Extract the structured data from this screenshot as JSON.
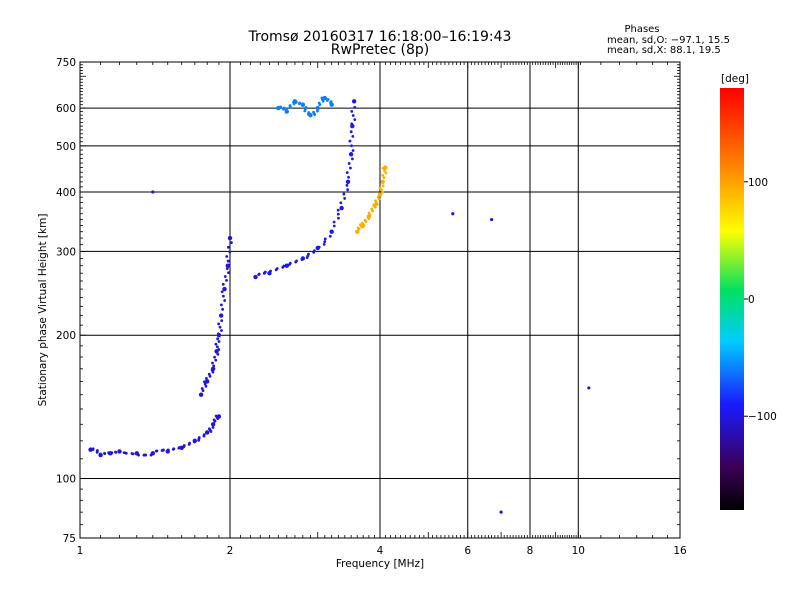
{
  "title_line1": "Tromsø 20160317 16:18:00–16:19:43",
  "title_line2": "RwPretec (8p)",
  "stats": {
    "heading": "Phases",
    "line_o": "mean, sd,O: −97.1, 15.5",
    "line_x": "mean, sd,X: 88.1, 19.5"
  },
  "colorbar": {
    "label": "[deg]",
    "range": [
      -180,
      180
    ],
    "tick_labels": [
      "100",
      "0",
      "−100"
    ],
    "tick_values": [
      100,
      0,
      -100
    ]
  },
  "chart_data": {
    "type": "scatter",
    "title": "Tromsø 20160317 16:18:00–16:19:43",
    "subtitle": "RwPretec (8p)",
    "xlabel": "Frequency [MHz]",
    "ylabel": "Stationary phase Virtual Height [km]",
    "x_scale": "log",
    "y_scale": "log",
    "xlim": [
      1,
      16
    ],
    "ylim": [
      75,
      750
    ],
    "x_ticks": [
      1,
      2,
      4,
      6,
      8,
      10,
      16
    ],
    "x_tick_labels": [
      "1",
      "2",
      "4",
      "6",
      "8",
      "10",
      "16"
    ],
    "y_ticks": [
      75,
      100,
      200,
      300,
      400,
      500,
      600,
      750
    ],
    "y_tick_labels": [
      "75",
      "100",
      "200",
      "300",
      "400",
      "500",
      "600",
      "750"
    ],
    "grid": true,
    "color_by": "phase [deg]",
    "series": [
      {
        "role": "O-trace lower",
        "phase": -100,
        "x": [
          1.05,
          1.1,
          1.15,
          1.2,
          1.3,
          1.4,
          1.5,
          1.6,
          1.7,
          1.8,
          1.85,
          1.9
        ],
        "y": [
          115,
          112,
          113,
          114,
          113,
          113,
          114,
          116,
          120,
          125,
          130,
          135
        ]
      },
      {
        "role": "O-trace F1 rise",
        "phase": -100,
        "x": [
          1.75,
          1.8,
          1.85,
          1.88,
          1.9,
          1.92,
          1.95,
          1.98,
          2.0
        ],
        "y": [
          150,
          160,
          170,
          185,
          200,
          220,
          250,
          280,
          320
        ]
      },
      {
        "role": "O-trace F2",
        "phase": -95,
        "x": [
          2.25,
          2.4,
          2.6,
          2.8,
          3.0,
          3.2,
          3.35,
          3.45,
          3.5,
          3.52,
          3.55
        ],
        "y": [
          265,
          270,
          280,
          290,
          305,
          330,
          370,
          420,
          480,
          550,
          620
        ]
      },
      {
        "role": "X-trace",
        "phase": 95,
        "x": [
          3.6,
          3.7,
          3.8,
          3.9,
          4.0,
          4.05,
          4.1
        ],
        "y": [
          330,
          340,
          355,
          375,
          395,
          420,
          450
        ]
      },
      {
        "role": "Spread 600 km",
        "phase": -60,
        "x": [
          2.5,
          2.6,
          2.7,
          2.8,
          2.9,
          3.0,
          3.1,
          3.2
        ],
        "y": [
          600,
          590,
          620,
          610,
          580,
          600,
          630,
          610
        ]
      },
      {
        "role": "Isolated",
        "phase": -100,
        "x": [
          1.4,
          10.5,
          6.7,
          5.6,
          7.0
        ],
        "y": [
          400,
          155,
          350,
          360,
          85
        ]
      }
    ]
  }
}
